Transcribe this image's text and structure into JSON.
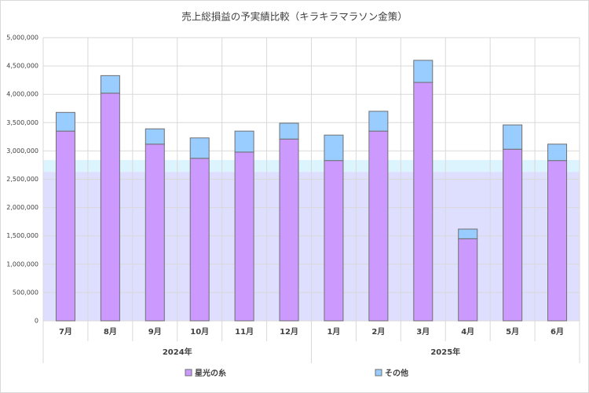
{
  "chart_data": {
    "type": "bar",
    "stacked": true,
    "title": "売上総損益の予実績比較（キラキラマラソン金策）",
    "groups": [
      {
        "label": "2024年",
        "categories": [
          "7月",
          "8月",
          "9月",
          "10月",
          "11月",
          "12月"
        ]
      },
      {
        "label": "2025年",
        "categories": [
          "1月",
          "2月",
          "3月",
          "4月",
          "5月",
          "6月"
        ]
      }
    ],
    "series": [
      {
        "name": "星光の糸",
        "color": "#cc99ff",
        "values": [
          3350000,
          4020000,
          3120000,
          2870000,
          2980000,
          3210000,
          2830000,
          3350000,
          4210000,
          1450000,
          3030000,
          2830000
        ]
      },
      {
        "name": "その他",
        "color": "#99ccff",
        "values": [
          330000,
          310000,
          270000,
          360000,
          370000,
          280000,
          450000,
          350000,
          390000,
          170000,
          430000,
          290000
        ]
      }
    ],
    "plan_areas": [
      {
        "color": "#dedeff",
        "values": [
          2630000,
          2630000,
          2630000,
          2630000,
          2630000,
          2630000,
          2630000,
          2630000,
          2630000,
          2630000,
          2630000,
          2630000
        ]
      },
      {
        "color": "#dcf4fd",
        "values": [
          210000,
          210000,
          210000,
          210000,
          210000,
          210000,
          210000,
          210000,
          210000,
          210000,
          210000,
          210000
        ]
      }
    ],
    "ylim": [
      0,
      5000000
    ],
    "yticks": [
      0,
      {
        "value": 500000,
        "label": "500,000"
      },
      {
        "value": 1000000,
        "label": "1,000,000"
      },
      {
        "value": 1500000,
        "label": "1,500,000"
      },
      {
        "value": 2000000,
        "label": "2,000,000"
      },
      {
        "value": 2500000,
        "label": "2,500,000"
      },
      {
        "value": 3000000,
        "label": "3,000,000"
      },
      {
        "value": 3500000,
        "label": "3,500,000"
      },
      {
        "value": 4000000,
        "label": "4,000,000"
      },
      {
        "value": 4500000,
        "label": "4,500,000"
      },
      {
        "value": 5000000,
        "label": "5,000,000"
      }
    ],
    "grid": true
  }
}
